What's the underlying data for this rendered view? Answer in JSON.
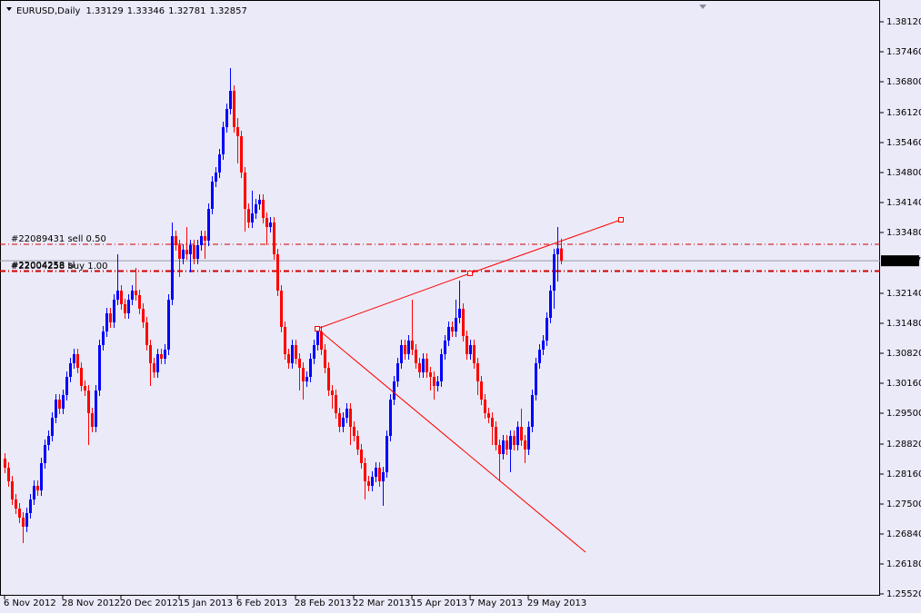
{
  "chart_data": {
    "type": "candlestick",
    "symbol": "EURUSD,Daily",
    "categories": [
      "6 Nov 2012",
      null,
      null,
      null,
      null,
      null,
      null,
      null,
      null,
      null,
      null,
      null,
      null,
      null,
      null,
      null,
      "28 Nov 2012",
      null,
      null,
      null,
      null,
      null,
      null,
      null,
      null,
      null,
      null,
      null,
      null,
      null,
      null,
      null,
      "20 Dec 2012",
      null,
      null,
      null,
      null,
      null,
      null,
      null,
      null,
      null,
      null,
      null,
      null,
      null,
      null,
      null,
      "15 Jan 2013",
      null,
      null,
      null,
      null,
      null,
      null,
      null,
      null,
      null,
      null,
      null,
      null,
      null,
      null,
      null,
      "6 Feb 2013",
      null,
      null,
      null,
      null,
      null,
      null,
      null,
      null,
      null,
      null,
      null,
      null,
      null,
      null,
      null,
      "28 Feb 2013",
      null,
      null,
      null,
      null,
      null,
      null,
      null,
      null,
      null,
      null,
      null,
      null,
      null,
      null,
      null,
      "22 Mar 2013",
      null,
      null,
      null,
      null,
      null,
      null,
      null,
      null,
      null,
      null,
      null,
      null,
      null,
      null,
      null,
      "15 Apr 2013",
      null,
      null,
      null,
      null,
      null,
      null,
      null,
      null,
      null,
      null,
      null,
      null,
      null,
      null,
      null,
      "7 May 2013",
      null,
      null,
      null,
      null,
      null,
      null,
      null,
      null,
      null,
      null,
      null,
      null,
      null,
      null,
      null,
      "29 May 2013",
      null,
      null,
      null,
      null,
      null,
      null,
      null,
      null,
      null
    ],
    "open": [
      1.285,
      1.283,
      1.28,
      1.276,
      1.274,
      1.272,
      1.27,
      1.273,
      1.276,
      1.279,
      1.278,
      1.284,
      1.288,
      1.29,
      1.294,
      1.298,
      1.296,
      1.299,
      1.303,
      1.306,
      1.308,
      1.305,
      1.301,
      1.3,
      1.295,
      1.292,
      1.3,
      1.31,
      1.313,
      1.317,
      1.315,
      1.32,
      1.322,
      1.319,
      1.317,
      1.32,
      1.322,
      1.321,
      1.318,
      1.315,
      1.31,
      1.306,
      1.304,
      1.308,
      1.307,
      1.309,
      1.32,
      1.334,
      1.332,
      1.329,
      1.331,
      1.33,
      1.332,
      1.329,
      1.332,
      1.334,
      1.333,
      1.34,
      1.346,
      1.348,
      1.352,
      1.358,
      1.362,
      1.366,
      1.358,
      1.356,
      1.348,
      1.34,
      1.337,
      1.339,
      1.341,
      1.342,
      1.338,
      1.336,
      1.337,
      1.33,
      1.322,
      1.314,
      1.308,
      1.306,
      1.31,
      1.307,
      1.305,
      1.302,
      1.303,
      1.307,
      1.31,
      1.313,
      1.309,
      1.305,
      1.3,
      1.299,
      1.295,
      1.292,
      1.294,
      1.296,
      1.292,
      1.29,
      1.287,
      1.284,
      1.28,
      1.279,
      1.281,
      1.283,
      1.28,
      1.282,
      1.29,
      1.298,
      1.302,
      1.306,
      1.31,
      1.308,
      1.311,
      1.309,
      1.306,
      1.304,
      1.307,
      1.304,
      1.303,
      1.301,
      1.302,
      1.308,
      1.311,
      1.314,
      1.313,
      1.316,
      1.318,
      1.312,
      1.308,
      1.31,
      1.306,
      1.302,
      1.298,
      1.295,
      1.294,
      1.292,
      1.288,
      1.286,
      1.289,
      1.287,
      1.29,
      1.288,
      1.292,
      1.289,
      1.287,
      1.292,
      1.299,
      1.306,
      1.309,
      1.311,
      1.316,
      1.322,
      1.33,
      1.33129
    ],
    "high": [
      1.2862,
      1.2842,
      1.2812,
      1.2772,
      1.2752,
      1.2732,
      1.2742,
      1.2772,
      1.2802,
      1.2802,
      1.2852,
      1.2892,
      1.2912,
      1.2952,
      1.2992,
      1.2992,
      1.3002,
      1.3042,
      1.3072,
      1.3092,
      1.3092,
      1.3062,
      1.3022,
      1.3012,
      1.2962,
      1.3012,
      1.3112,
      1.3142,
      1.3182,
      1.3182,
      1.3212,
      1.33,
      1.3232,
      1.3202,
      1.3212,
      1.3232,
      1.327,
      1.3222,
      1.3192,
      1.3162,
      1.3112,
      1.3072,
      1.3092,
      1.3092,
      1.3102,
      1.3212,
      1.337,
      1.3352,
      1.3332,
      1.3322,
      1.336,
      1.3332,
      1.3332,
      1.3332,
      1.3352,
      1.3352,
      1.3412,
      1.3472,
      1.3492,
      1.3532,
      1.3592,
      1.3632,
      1.371,
      1.3672,
      1.36,
      1.3572,
      1.3492,
      1.3412,
      1.344,
      1.3422,
      1.3432,
      1.3432,
      1.3392,
      1.3382,
      1.3382,
      1.3312,
      1.3232,
      1.3152,
      1.3092,
      1.3112,
      1.3112,
      1.3082,
      1.3062,
      1.3042,
      1.3082,
      1.3112,
      1.3142,
      1.3142,
      1.3102,
      1.3062,
      1.3012,
      1.3002,
      1.2962,
      1.2952,
      1.2972,
      1.2972,
      1.2932,
      1.2912,
      1.2882,
      1.2852,
      1.2812,
      1.2822,
      1.2842,
      1.2842,
      1.2832,
      1.2912,
      1.2992,
      1.3032,
      1.3072,
      1.3112,
      1.3112,
      1.3122,
      1.32,
      1.3102,
      1.3072,
      1.3082,
      1.3082,
      1.3052,
      1.3042,
      1.3032,
      1.3092,
      1.3122,
      1.3152,
      1.3152,
      1.32,
      1.3242,
      1.3192,
      1.3132,
      1.3112,
      1.3112,
      1.3072,
      1.3032,
      1.2992,
      1.2962,
      1.2952,
      1.2932,
      1.2892,
      1.2902,
      1.2902,
      1.2912,
      1.2912,
      1.2932,
      1.296,
      1.2902,
      1.2932,
      1.3002,
      1.3072,
      1.3102,
      1.3122,
      1.3172,
      1.3232,
      1.3312,
      1.336,
      1.33346
    ],
    "low": [
      1.2818,
      1.2788,
      1.2748,
      1.2728,
      1.2708,
      1.2664,
      1.2688,
      1.2718,
      1.2748,
      1.2768,
      1.2768,
      1.2828,
      1.2868,
      1.2888,
      1.2928,
      1.2948,
      1.2948,
      1.2978,
      1.3018,
      1.3048,
      1.3038,
      1.2998,
      1.2988,
      1.288,
      1.2908,
      1.2908,
      1.2988,
      1.3088,
      1.3118,
      1.3138,
      1.3138,
      1.3188,
      1.3178,
      1.3158,
      1.3158,
      1.3188,
      1.3198,
      1.3168,
      1.3138,
      1.3088,
      1.301,
      1.3028,
      1.3028,
      1.3058,
      1.3058,
      1.3078,
      1.3188,
      1.3308,
      1.325,
      1.3278,
      1.3288,
      1.326,
      1.3278,
      1.3278,
      1.3308,
      1.329,
      1.3318,
      1.3388,
      1.3448,
      1.3468,
      1.3508,
      1.3568,
      1.3608,
      1.3568,
      1.35,
      1.3468,
      1.335,
      1.3358,
      1.3358,
      1.3378,
      1.3398,
      1.3368,
      1.332,
      1.3348,
      1.3288,
      1.3208,
      1.3128,
      1.3068,
      1.3048,
      1.3048,
      1.3058,
      1.3,
      1.298,
      1.3008,
      1.3018,
      1.3058,
      1.3088,
      1.3078,
      1.3038,
      1.2988,
      1.296,
      1.2938,
      1.2908,
      1.2908,
      1.2928,
      1.288,
      1.2888,
      1.2858,
      1.2828,
      1.276,
      1.2778,
      1.2778,
      1.2798,
      1.2788,
      1.2746,
      1.2808,
      1.2888,
      1.2968,
      1.3008,
      1.3048,
      1.3068,
      1.3068,
      1.3078,
      1.3048,
      1.3028,
      1.3028,
      1.3028,
      1.3,
      1.298,
      1.2998,
      1.3008,
      1.3068,
      1.3098,
      1.3118,
      1.3118,
      1.3148,
      1.3108,
      1.3068,
      1.3068,
      1.3048,
      1.299,
      1.2968,
      1.2938,
      1.2928,
      1.288,
      1.2868,
      1.28,
      1.2848,
      1.2858,
      1.282,
      1.2868,
      1.2868,
      1.2878,
      1.284,
      1.2858,
      1.2908,
      1.2978,
      1.3048,
      1.3078,
      1.3098,
      1.3148,
      1.318,
      1.324,
      1.32781
    ],
    "close": [
      1.283,
      1.28,
      1.276,
      1.274,
      1.272,
      1.27,
      1.273,
      1.276,
      1.279,
      1.278,
      1.284,
      1.288,
      1.29,
      1.294,
      1.298,
      1.296,
      1.299,
      1.303,
      1.306,
      1.308,
      1.305,
      1.301,
      1.3,
      1.295,
      1.292,
      1.3,
      1.31,
      1.313,
      1.317,
      1.315,
      1.32,
      1.322,
      1.319,
      1.317,
      1.32,
      1.322,
      1.321,
      1.318,
      1.315,
      1.31,
      1.306,
      1.304,
      1.308,
      1.307,
      1.309,
      1.32,
      1.334,
      1.332,
      1.329,
      1.331,
      1.33,
      1.332,
      1.329,
      1.332,
      1.334,
      1.333,
      1.34,
      1.346,
      1.348,
      1.352,
      1.358,
      1.362,
      1.366,
      1.358,
      1.356,
      1.348,
      1.34,
      1.337,
      1.339,
      1.341,
      1.342,
      1.338,
      1.336,
      1.337,
      1.33,
      1.322,
      1.314,
      1.308,
      1.306,
      1.31,
      1.307,
      1.305,
      1.302,
      1.303,
      1.307,
      1.31,
      1.313,
      1.309,
      1.305,
      1.3,
      1.299,
      1.295,
      1.292,
      1.294,
      1.296,
      1.292,
      1.29,
      1.287,
      1.284,
      1.28,
      1.279,
      1.281,
      1.283,
      1.28,
      1.282,
      1.29,
      1.298,
      1.302,
      1.306,
      1.31,
      1.308,
      1.311,
      1.309,
      1.306,
      1.304,
      1.307,
      1.304,
      1.303,
      1.301,
      1.302,
      1.308,
      1.311,
      1.314,
      1.313,
      1.316,
      1.318,
      1.312,
      1.308,
      1.31,
      1.306,
      1.302,
      1.298,
      1.295,
      1.294,
      1.292,
      1.288,
      1.286,
      1.289,
      1.287,
      1.29,
      1.288,
      1.292,
      1.289,
      1.287,
      1.292,
      1.299,
      1.306,
      1.309,
      1.311,
      1.316,
      1.322,
      1.33,
      1.33129,
      1.32857
    ],
    "up_color": "#0000ff",
    "down_color": "#ff0000",
    "ylim": [
      1.2548,
      1.3844
    ],
    "yticks": [
      {
        "value": 1.3812,
        "label": "1.38120"
      },
      {
        "value": 1.3746,
        "label": "1.37460"
      },
      {
        "value": 1.368,
        "label": "1.36800"
      },
      {
        "value": 1.3612,
        "label": "1.36120"
      },
      {
        "value": 1.3546,
        "label": "1.35460"
      },
      {
        "value": 1.348,
        "label": "1.34800"
      },
      {
        "value": 1.3414,
        "label": "1.34140"
      },
      {
        "value": 1.3348,
        "label": "1.33480"
      },
      {
        "value": 1.3214,
        "label": "1.32140"
      },
      {
        "value": 1.3148,
        "label": "1.31480"
      },
      {
        "value": 1.3082,
        "label": "1.30820"
      },
      {
        "value": 1.3016,
        "label": "1.30160"
      },
      {
        "value": 1.295,
        "label": "1.29500"
      },
      {
        "value": 1.2882,
        "label": "1.28820"
      },
      {
        "value": 1.2816,
        "label": "1.28160"
      },
      {
        "value": 1.275,
        "label": "1.27500"
      },
      {
        "value": 1.2684,
        "label": "1.26840"
      },
      {
        "value": 1.2618,
        "label": "1.26180"
      },
      {
        "value": 1.2552,
        "label": "1.25520"
      }
    ],
    "order_lines": [
      {
        "label": "#22089431 sell 0.50",
        "price": 1.3322
      },
      {
        "label": "#22004258 sl",
        "price": 1.3264
      },
      {
        "label": "#22004258 buy 1.00",
        "price": 1.3262
      }
    ],
    "order_color": "#d00000",
    "trendlines": [
      {
        "x": [
          86,
          128,
          169.5
        ],
        "y": [
          1.3136,
          1.3258,
          1.3376
        ]
      },
      {
        "x": [
          86,
          159.75
        ],
        "y": [
          1.3136,
          1.2644
        ]
      }
    ],
    "trendline_color": "#ff0000",
    "grid": false
  }
}
